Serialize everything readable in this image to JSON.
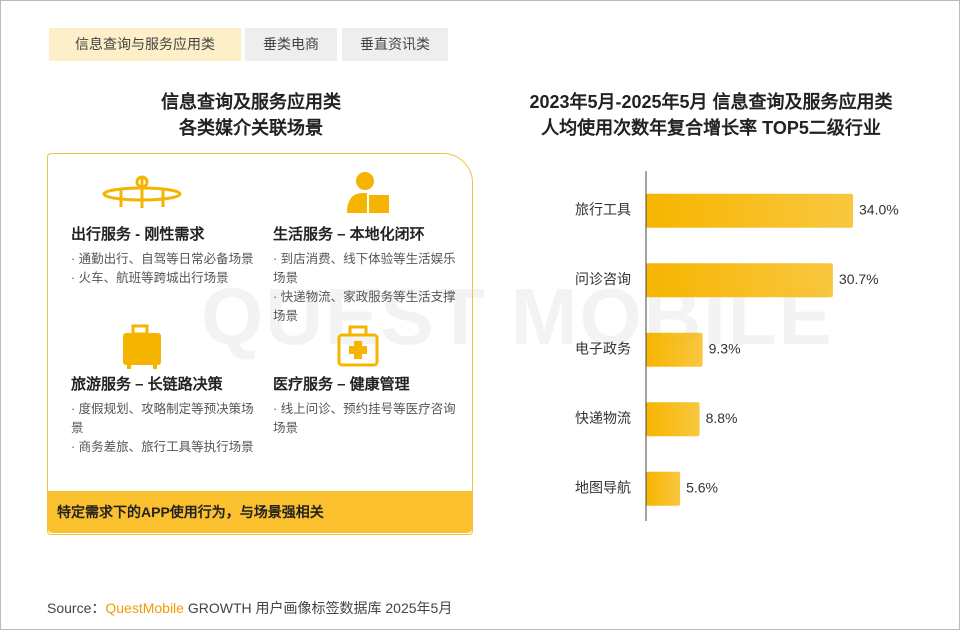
{
  "tabs": [
    "信息查询与服务应用类",
    "垂类电商",
    "垂直资讯类"
  ],
  "left_panel": {
    "title": [
      "信息查询及服务应用类",
      "各类媒介关联场景"
    ],
    "cards": [
      {
        "title": "出行服务 - 刚性需求",
        "bullets": [
          "· 通勤出行、自驾等日常必备场景",
          "· 火车、航班等跨城出行场景"
        ]
      },
      {
        "title": "生活服务 – 本地化闭环",
        "bullets": [
          "· 到店消费、线下体验等生活娱乐场景",
          "· 快递物流、家政服务等生活支撑场景"
        ]
      },
      {
        "title": "旅游服务 – 长链路决策",
        "bullets": [
          "· 度假规划、攻略制定等预决策场景",
          "· 商务差旅、旅行工具等执行场景"
        ]
      },
      {
        "title": "医疗服务 – 健康管理",
        "bullets": [
          "· 线上问诊、预约挂号等医疗咨询场景"
        ]
      }
    ],
    "banner": "特定需求下的APP使用行为，与场景强相关"
  },
  "watermark": "QUEST MOBILE",
  "chart_data": {
    "type": "bar",
    "orientation": "horizontal",
    "title": [
      "2023年5月-2025年5月 信息查询及服务应用类",
      "人均使用次数年复合增长率 TOP5二级行业"
    ],
    "categories": [
      "旅行工具",
      "问诊咨询",
      "电子政务",
      "快递物流",
      "地图导航"
    ],
    "values": [
      34.0,
      30.7,
      9.3,
      8.8,
      5.6
    ],
    "value_labels": [
      "34.0%",
      "30.7%",
      "9.3%",
      "8.8%",
      "5.6%"
    ],
    "color": "#f7b500"
  },
  "footer": {
    "label": "Source：",
    "brand": "QuestMobile",
    "text": "GROWTH 用户画像标签数据库 2025年5月"
  }
}
